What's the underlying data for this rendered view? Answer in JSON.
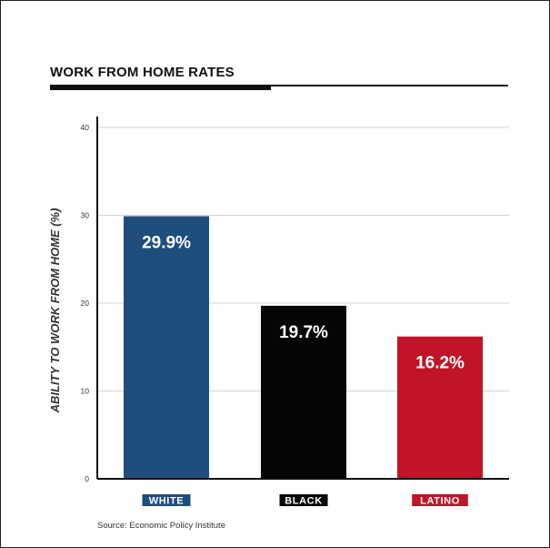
{
  "chart_data": {
    "type": "bar",
    "title": "WORK FROM HOME RATES",
    "ylabel": "ABILITY TO WORK FROM HOME (%)",
    "xlabel": "",
    "ylim": [
      0,
      40
    ],
    "yticks": [
      "0",
      "10",
      "20",
      "30",
      "40"
    ],
    "grid": true,
    "categories": [
      "WHITE",
      "BLACK",
      "LATINO"
    ],
    "values": [
      29.9,
      19.7,
      16.2
    ],
    "value_labels": [
      "29.9%",
      "19.7%",
      "16.2%"
    ],
    "colors": [
      "#1f4e7d",
      "#050505",
      "#c01428"
    ],
    "source": "Source: Economic Policy Institute"
  }
}
